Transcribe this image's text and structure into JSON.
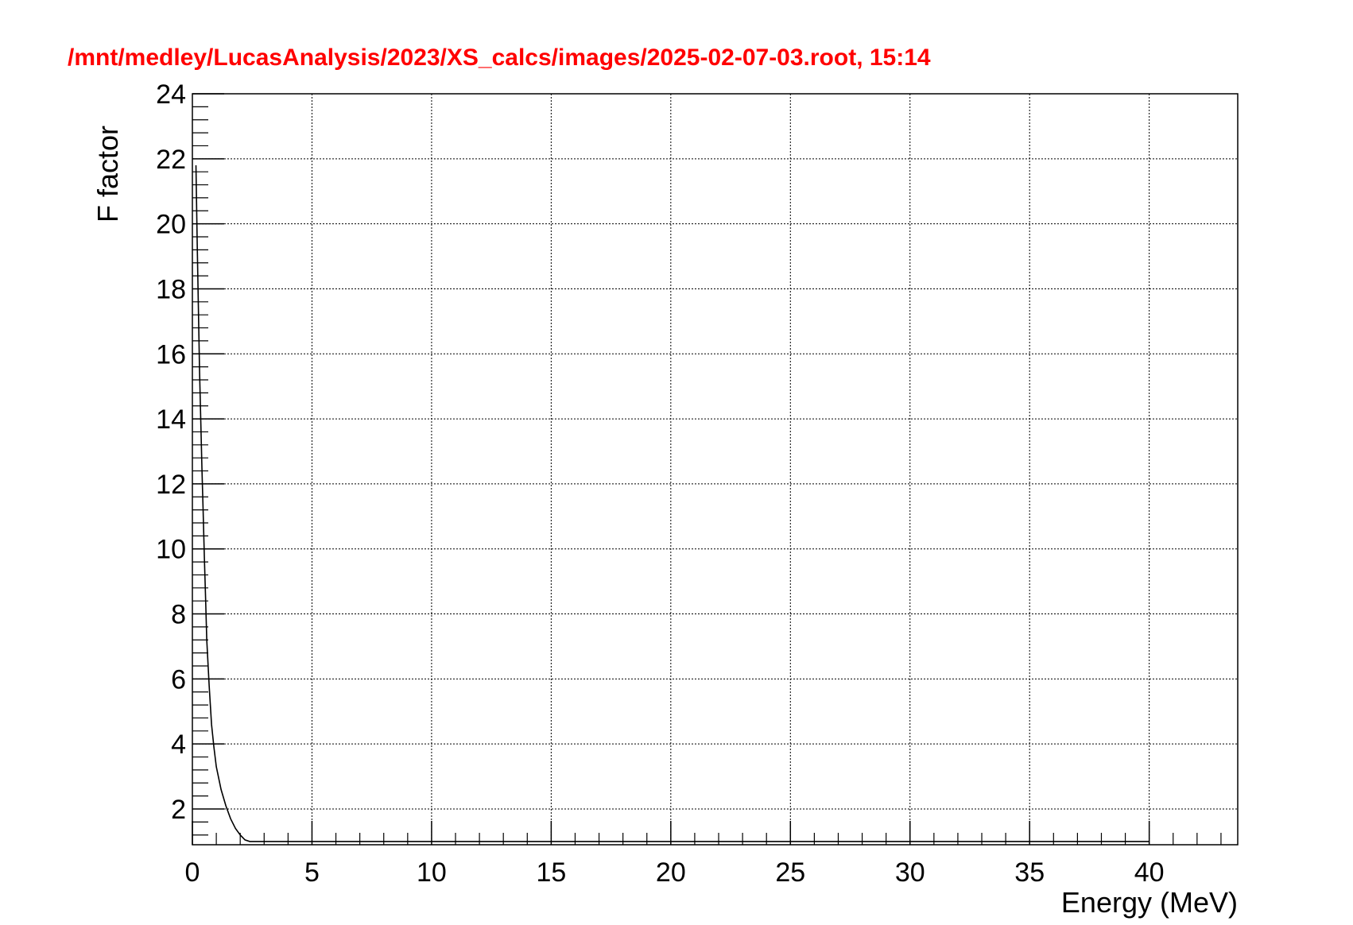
{
  "header": {
    "title": "/mnt/medley/LucasAnalysis/2023/XS_calcs/images/2025-02-07-03.root,  15:14"
  },
  "colors": {
    "title": "#ff0000",
    "curve": "#000000",
    "grid": "#000000",
    "frame": "#000000"
  },
  "chart_data": {
    "type": "line",
    "title": "/mnt/medley/LucasAnalysis/2023/XS_calcs/images/2025-02-07-03.root,  15:14",
    "xlabel": "Energy (MeV)",
    "ylabel": "F factor",
    "xlim": [
      0,
      43.7
    ],
    "ylim": [
      0.9,
      24
    ],
    "x_ticks": [
      0,
      5,
      10,
      15,
      20,
      25,
      30,
      35,
      40
    ],
    "x_tick_labels": [
      "0",
      "5",
      "10",
      "15",
      "20",
      "25",
      "30",
      "35",
      "40"
    ],
    "y_ticks": [
      2,
      4,
      6,
      8,
      10,
      12,
      14,
      16,
      18,
      20,
      22,
      24
    ],
    "y_tick_labels": [
      "2",
      "4",
      "6",
      "8",
      "10",
      "12",
      "14",
      "16",
      "18",
      "20",
      "22",
      "24"
    ],
    "grid": true,
    "series": [
      {
        "x": [
          0.15,
          0.2,
          0.25,
          0.3,
          0.35,
          0.4,
          0.45,
          0.5,
          0.55,
          0.6,
          0.7,
          0.8,
          0.9,
          1.0,
          1.2,
          1.4,
          1.6,
          1.8,
          2.0,
          2.2,
          2.4,
          3.0,
          5.0,
          10.0,
          20.0,
          30.0,
          40.0
        ],
        "y": [
          21.8,
          19.5,
          17.5,
          15.5,
          14.0,
          12.5,
          11.2,
          9.8,
          8.5,
          7.2,
          5.8,
          4.6,
          3.9,
          3.3,
          2.6,
          2.1,
          1.7,
          1.4,
          1.2,
          1.05,
          1.0,
          1.0,
          1.0,
          1.0,
          1.0,
          1.0,
          1.0
        ]
      }
    ]
  }
}
